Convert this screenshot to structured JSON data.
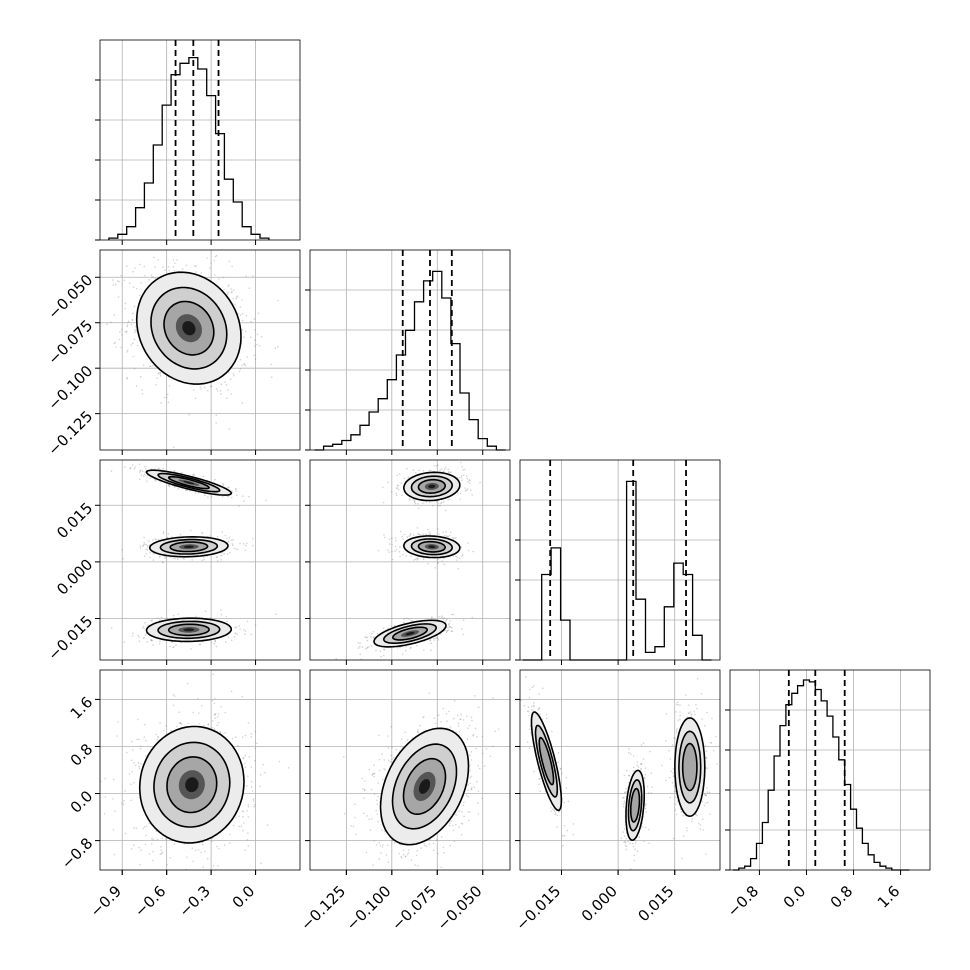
{
  "chart_data": {
    "type": "corner",
    "style": {
      "line_color": "#000000",
      "grid_color": "#b0b0b0",
      "background": "#ffffff",
      "scatter_color": "#808080",
      "quantile_lines": "dashed",
      "grid": true
    },
    "parameters": [
      {
        "ticks": [
          -0.9,
          -0.6,
          -0.3,
          0.0
        ],
        "tick_labels": [
          "−0.9",
          "−0.6",
          "−0.3",
          "0.0"
        ],
        "range": [
          -1.05,
          0.3
        ],
        "quantiles": [
          -0.54,
          -0.42,
          -0.25
        ],
        "hist_x": [
          -0.96,
          -0.9,
          -0.84,
          -0.78,
          -0.72,
          -0.66,
          -0.6,
          -0.54,
          -0.48,
          -0.42,
          -0.36,
          -0.3,
          -0.24,
          -0.18,
          -0.12,
          -0.06,
          0.0,
          0.06
        ],
        "hist_y": [
          0.01,
          0.03,
          0.07,
          0.17,
          0.3,
          0.5,
          0.71,
          0.87,
          0.93,
          0.96,
          0.9,
          0.76,
          0.56,
          0.32,
          0.2,
          0.07,
          0.03,
          0.01
        ]
      },
      {
        "ticks": [
          -0.125,
          -0.1,
          -0.075,
          -0.05
        ],
        "tick_labels": [
          "−0.125",
          "−0.100",
          "−0.075",
          "−0.050"
        ],
        "range": [
          -0.145,
          -0.035
        ],
        "quantiles": [
          -0.094,
          -0.079,
          -0.067
        ],
        "hist_x": [
          -0.14,
          -0.135,
          -0.13,
          -0.125,
          -0.12,
          -0.115,
          -0.11,
          -0.105,
          -0.1,
          -0.095,
          -0.09,
          -0.085,
          -0.08,
          -0.075,
          -0.07,
          -0.065,
          -0.06,
          -0.055,
          -0.05,
          -0.045,
          -0.04
        ],
        "hist_y": [
          0.0,
          0.02,
          0.03,
          0.05,
          0.08,
          0.13,
          0.2,
          0.27,
          0.37,
          0.5,
          0.63,
          0.78,
          0.89,
          0.94,
          0.8,
          0.56,
          0.3,
          0.16,
          0.06,
          0.02,
          0.0
        ]
      },
      {
        "ticks": [
          -0.015,
          0.0,
          0.015
        ],
        "tick_labels": [
          "−0.015",
          "0.000",
          "0.015"
        ],
        "range": [
          -0.026,
          0.027
        ],
        "quantiles": [
          -0.018,
          0.004,
          0.018
        ],
        "hist_x": [
          -0.024,
          -0.0215,
          -0.019,
          -0.0165,
          -0.014,
          -0.0115,
          -0.009,
          -0.0065,
          -0.004,
          -0.0015,
          0.001,
          0.0035,
          0.006,
          0.0085,
          0.011,
          0.0135,
          0.016,
          0.0185,
          0.021,
          0.0235
        ],
        "hist_y": [
          0.0,
          0.0,
          0.45,
          0.59,
          0.21,
          0.0,
          0.0,
          0.0,
          0.0,
          0.0,
          0.0,
          0.94,
          0.32,
          0.04,
          0.07,
          0.28,
          0.51,
          0.45,
          0.13,
          0.0
        ]
      },
      {
        "ticks": [
          -0.8,
          0.0,
          0.8,
          1.6
        ],
        "tick_labels": [
          "−0.8",
          "0.0",
          "0.8",
          "1.6"
        ],
        "range": [
          -1.3,
          2.1
        ],
        "quantiles": [
          -0.3,
          0.15,
          0.65
        ],
        "hist_x": [
          -1.2,
          -1.1,
          -1.0,
          -0.9,
          -0.8,
          -0.7,
          -0.6,
          -0.5,
          -0.4,
          -0.3,
          -0.2,
          -0.1,
          0.0,
          0.1,
          0.2,
          0.3,
          0.4,
          0.5,
          0.6,
          0.7,
          0.8,
          0.9,
          1.0,
          1.1,
          1.2,
          1.3,
          1.4,
          1.5,
          1.6,
          1.7
        ],
        "hist_y": [
          0.0,
          0.01,
          0.02,
          0.06,
          0.14,
          0.25,
          0.42,
          0.6,
          0.76,
          0.87,
          0.93,
          0.97,
          1.0,
          0.99,
          0.95,
          0.89,
          0.81,
          0.7,
          0.58,
          0.45,
          0.32,
          0.22,
          0.14,
          0.08,
          0.04,
          0.02,
          0.01,
          0.0,
          0.0,
          0.0
        ]
      }
    ],
    "pairs": [
      {
        "row": 1,
        "col": 0,
        "blobs": [
          {
            "cx": -0.45,
            "cy": -0.078,
            "sx": 0.16,
            "sy": 0.014,
            "rho": -0.15,
            "w": 1.0,
            "lvl": 1.0
          }
        ]
      },
      {
        "row": 2,
        "col": 0,
        "blobs": [
          {
            "cx": -0.45,
            "cy": 0.021,
            "sx": 0.13,
            "sy": 0.0015,
            "rho": -0.85,
            "w": 0.33,
            "lvl": 1.0
          },
          {
            "cx": -0.45,
            "cy": 0.004,
            "sx": 0.12,
            "sy": 0.0012,
            "rho": 0.1,
            "w": 0.34,
            "lvl": 1.0
          },
          {
            "cx": -0.45,
            "cy": -0.018,
            "sx": 0.13,
            "sy": 0.0014,
            "rho": 0.05,
            "w": 0.33,
            "lvl": 1.0
          }
        ]
      },
      {
        "row": 2,
        "col": 1,
        "blobs": [
          {
            "cx": -0.078,
            "cy": 0.02,
            "sx": 0.007,
            "sy": 0.0017,
            "rho": 0.1,
            "w": 0.33,
            "lvl": 1.0
          },
          {
            "cx": -0.078,
            "cy": 0.004,
            "sx": 0.007,
            "sy": 0.0013,
            "rho": -0.1,
            "w": 0.34,
            "lvl": 1.0
          },
          {
            "cx": -0.09,
            "cy": -0.019,
            "sx": 0.009,
            "sy": 0.0016,
            "rho": 0.6,
            "w": 0.33,
            "lvl": 1.0
          }
        ]
      },
      {
        "row": 3,
        "col": 0,
        "blobs": [
          {
            "cx": -0.43,
            "cy": 0.15,
            "sx": 0.16,
            "sy": 0.45,
            "rho": 0.05,
            "w": 1.0,
            "lvl": 1.0
          }
        ]
      },
      {
        "row": 3,
        "col": 1,
        "blobs": [
          {
            "cx": -0.082,
            "cy": 0.12,
            "sx": 0.011,
            "sy": 0.45,
            "rho": 0.35,
            "w": 1.0,
            "lvl": 1.0
          }
        ]
      },
      {
        "row": 3,
        "col": 2,
        "blobs": [
          {
            "cx": -0.019,
            "cy": 0.55,
            "sx": 0.0018,
            "sy": 0.38,
            "rho": -0.8,
            "w": 0.33,
            "lvl": 0.33
          },
          {
            "cx": 0.0045,
            "cy": -0.2,
            "sx": 0.0011,
            "sy": 0.27,
            "rho": 0.3,
            "w": 0.34,
            "lvl": 0.34
          },
          {
            "cx": 0.019,
            "cy": 0.45,
            "sx": 0.0018,
            "sy": 0.38,
            "rho": 0.0,
            "w": 0.33,
            "lvl": 0.33
          }
        ]
      }
    ]
  }
}
